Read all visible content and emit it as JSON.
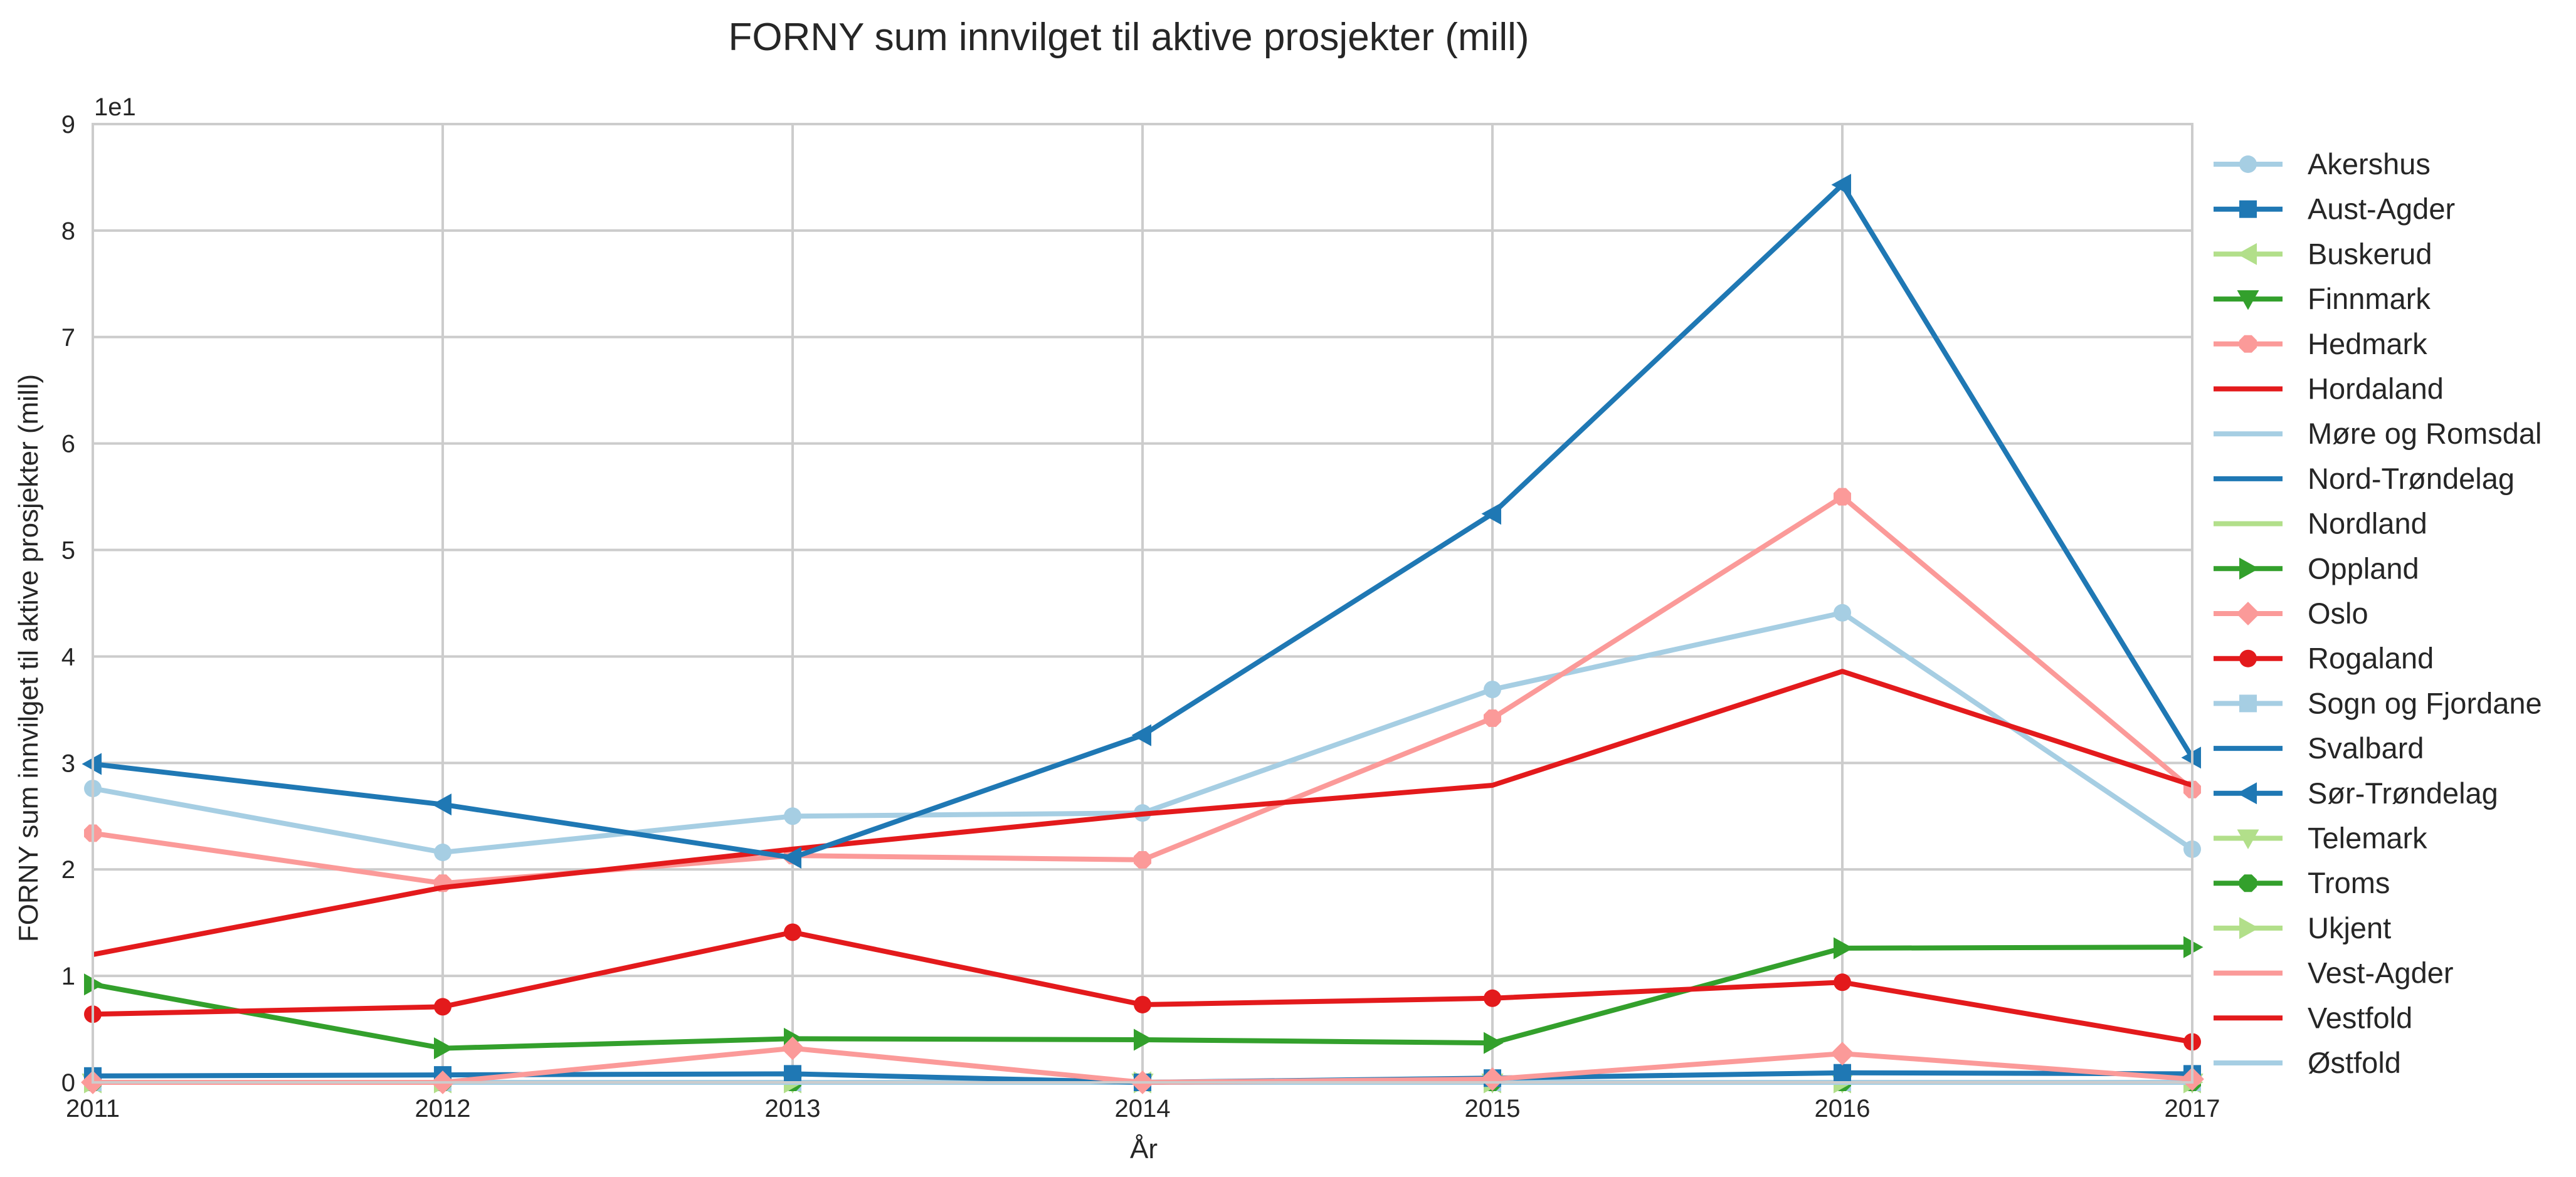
{
  "chart_data": {
    "type": "line",
    "title": "FORNY sum innvilget til aktive prosjekter (mill)",
    "xlabel": "År",
    "ylabel": "FORNY sum innvilget til aktive prosjekter (mill)",
    "y_scale_label": "1e1",
    "xlim": [
      2011,
      2017
    ],
    "ylim": [
      0,
      90
    ],
    "x": [
      2011,
      2012,
      2013,
      2014,
      2015,
      2016,
      2017
    ],
    "x_tick_labels": [
      "2011",
      "2012",
      "2013",
      "2014",
      "2015",
      "2016",
      "2017"
    ],
    "y_ticks": [
      0,
      10,
      20,
      30,
      40,
      50,
      60,
      70,
      80,
      90
    ],
    "y_tick_labels": [
      "0",
      "1",
      "2",
      "3",
      "4",
      "5",
      "6",
      "7",
      "8",
      "9"
    ],
    "grid": true,
    "legend_position": "right",
    "series": [
      {
        "name": "Akershus",
        "color": "#a6cee3",
        "marker": "circle",
        "values": [
          27.6,
          21.6,
          25.0,
          25.3,
          36.9,
          44.1,
          21.9
        ]
      },
      {
        "name": "Aust-Agder",
        "color": "#1f78b4",
        "marker": "square",
        "values": [
          0.6,
          0.7,
          0.8,
          0.0,
          0.4,
          0.9,
          0.8
        ]
      },
      {
        "name": "Buskerud",
        "color": "#b2df8a",
        "marker": "triangle-left",
        "values": [
          0.0,
          0.0,
          0.0,
          0.0,
          0.0,
          0.0,
          0.0
        ]
      },
      {
        "name": "Finnmark",
        "color": "#33a02c",
        "marker": "triangle-down",
        "values": [
          0.0,
          0.0,
          0.0,
          0.0,
          0.0,
          0.0,
          0.0
        ]
      },
      {
        "name": "Hedmark",
        "color": "#fb9a99",
        "marker": "octagon",
        "values": [
          23.4,
          18.7,
          21.3,
          20.9,
          34.2,
          55.0,
          27.5
        ]
      },
      {
        "name": "Hordaland",
        "color": "#e31a1c",
        "marker": "none",
        "values": [
          12.0,
          18.3,
          21.9,
          25.2,
          27.9,
          38.6,
          27.9
        ]
      },
      {
        "name": "Møre og Romsdal",
        "color": "#a6cee3",
        "marker": "none",
        "values": [
          0.0,
          0.0,
          0.0,
          0.0,
          0.0,
          0.0,
          0.0
        ]
      },
      {
        "name": "Nord-Trøndelag",
        "color": "#1f78b4",
        "marker": "none",
        "values": [
          0.0,
          0.0,
          0.0,
          0.0,
          0.0,
          0.0,
          0.0
        ]
      },
      {
        "name": "Nordland",
        "color": "#b2df8a",
        "marker": "none",
        "values": [
          0.0,
          0.0,
          0.0,
          0.0,
          0.0,
          0.0,
          0.0
        ]
      },
      {
        "name": "Oppland",
        "color": "#33a02c",
        "marker": "triangle-right",
        "values": [
          9.2,
          3.2,
          4.1,
          4.0,
          3.7,
          12.6,
          12.7
        ]
      },
      {
        "name": "Oslo",
        "color": "#fb9a99",
        "marker": "diamond",
        "values": [
          0.0,
          0.0,
          3.2,
          0.0,
          0.3,
          2.7,
          0.3
        ]
      },
      {
        "name": "Rogaland",
        "color": "#e31a1c",
        "marker": "circle",
        "values": [
          6.4,
          7.1,
          14.1,
          7.3,
          7.9,
          9.4,
          3.8
        ]
      },
      {
        "name": "Sogn og Fjordane",
        "color": "#a6cee3",
        "marker": "square",
        "values": [
          0.0,
          0.0,
          0.0,
          0.0,
          0.0,
          0.0,
          0.0
        ]
      },
      {
        "name": "Svalbard",
        "color": "#1f78b4",
        "marker": "none",
        "values": [
          0.0,
          0.0,
          0.0,
          0.0,
          0.0,
          0.0,
          0.0
        ]
      },
      {
        "name": "Sør-Trøndelag",
        "color": "#1f78b4",
        "marker": "triangle-left",
        "values": [
          29.9,
          26.1,
          21.1,
          32.6,
          53.4,
          84.3,
          30.5
        ]
      },
      {
        "name": "Telemark",
        "color": "#b2df8a",
        "marker": "triangle-down",
        "values": [
          0.0,
          0.0,
          0.0,
          0.0,
          0.0,
          0.0,
          0.0
        ]
      },
      {
        "name": "Troms",
        "color": "#33a02c",
        "marker": "octagon",
        "values": [
          0.0,
          0.0,
          0.0,
          0.0,
          0.0,
          0.0,
          0.0
        ]
      },
      {
        "name": "Ukjent",
        "color": "#b2df8a",
        "marker": "triangle-right",
        "values": [
          0.0,
          0.0,
          0.0,
          0.0,
          0.0,
          0.0,
          0.0
        ]
      },
      {
        "name": "Vest-Agder",
        "color": "#fb9a99",
        "marker": "none",
        "values": [
          0.0,
          0.0,
          0.0,
          0.0,
          0.0,
          0.0,
          0.0
        ]
      },
      {
        "name": "Vestfold",
        "color": "#e31a1c",
        "marker": "none",
        "values": [
          0.0,
          0.0,
          0.0,
          0.0,
          0.0,
          0.0,
          0.0
        ]
      },
      {
        "name": "Østfold",
        "color": "#a6cee3",
        "marker": "none",
        "values": [
          0.0,
          0.0,
          0.0,
          0.0,
          0.0,
          0.0,
          0.0
        ]
      }
    ]
  }
}
